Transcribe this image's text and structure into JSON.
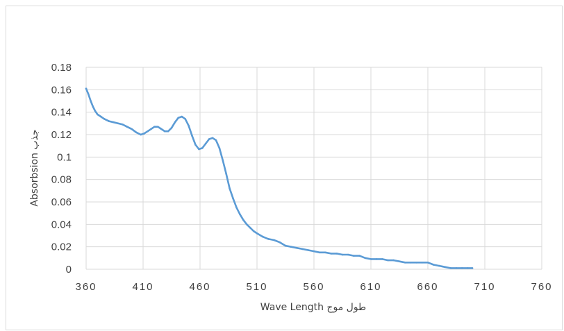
{
  "chart_data": {
    "type": "line",
    "title": "",
    "xlabel": "Wave Length طول موج",
    "ylabel": "Absorbsion جذب",
    "xlim": [
      360,
      760
    ],
    "ylim": [
      0,
      0.18
    ],
    "x_ticks": [
      "360",
      "410",
      "460",
      "510",
      "560",
      "610",
      "660",
      "710",
      "760"
    ],
    "y_ticks": [
      "0",
      "0.02",
      "0.04",
      "0.06",
      "0.08",
      "0.1",
      "0.12",
      "0.14",
      "0.16",
      "0.18"
    ],
    "grid": true,
    "legend": "none",
    "series": [
      {
        "color": "#5b9bd5",
        "x": [
          360,
          362,
          364,
          366,
          368,
          370,
          373,
          376,
          380,
          384,
          388,
          392,
          396,
          400,
          404,
          408,
          411,
          414,
          417,
          420,
          423,
          426,
          429,
          432,
          435,
          438,
          441,
          444,
          447,
          450,
          453,
          456,
          459,
          462,
          465,
          468,
          471,
          474,
          477,
          480,
          483,
          486,
          489,
          492,
          495,
          498,
          501,
          504,
          507,
          510,
          515,
          520,
          525,
          530,
          535,
          540,
          545,
          550,
          555,
          560,
          565,
          570,
          575,
          580,
          585,
          590,
          595,
          600,
          605,
          610,
          615,
          620,
          625,
          630,
          635,
          640,
          645,
          650,
          655,
          660,
          665,
          670,
          675,
          680,
          685,
          690,
          695,
          699
        ],
        "y": [
          0.161,
          0.156,
          0.15,
          0.145,
          0.141,
          0.138,
          0.136,
          0.134,
          0.132,
          0.131,
          0.13,
          0.129,
          0.127,
          0.125,
          0.122,
          0.12,
          0.121,
          0.123,
          0.125,
          0.127,
          0.127,
          0.125,
          0.123,
          0.123,
          0.126,
          0.131,
          0.135,
          0.136,
          0.134,
          0.128,
          0.119,
          0.111,
          0.107,
          0.108,
          0.112,
          0.116,
          0.117,
          0.115,
          0.108,
          0.097,
          0.085,
          0.072,
          0.063,
          0.055,
          0.049,
          0.044,
          0.04,
          0.037,
          0.034,
          0.032,
          0.029,
          0.027,
          0.026,
          0.024,
          0.021,
          0.02,
          0.019,
          0.018,
          0.017,
          0.016,
          0.015,
          0.015,
          0.014,
          0.014,
          0.013,
          0.013,
          0.012,
          0.012,
          0.01,
          0.009,
          0.009,
          0.009,
          0.008,
          0.008,
          0.007,
          0.006,
          0.006,
          0.006,
          0.006,
          0.006,
          0.004,
          0.003,
          0.002,
          0.001,
          0.001,
          0.001,
          0.001,
          0.001
        ]
      }
    ]
  }
}
